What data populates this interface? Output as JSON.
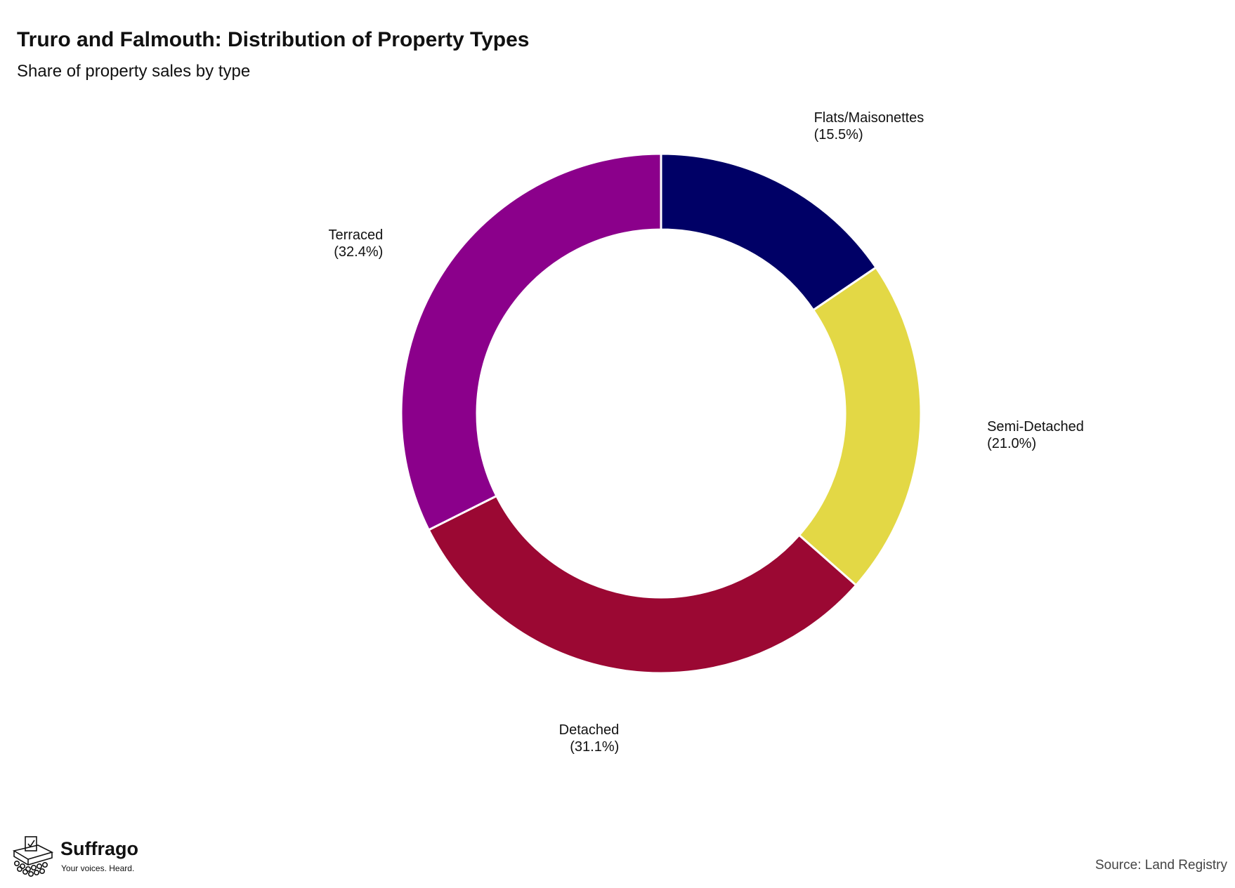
{
  "header": {
    "title": "Truro and Falmouth: Distribution of Property Types",
    "subtitle": "Share of property sales by type"
  },
  "chart_data": {
    "type": "pie",
    "variant": "donut",
    "title": "Truro and Falmouth: Distribution of Property Types",
    "subtitle": "Share of property sales by type",
    "unit": "%",
    "slices": [
      {
        "label": "Flats/Maisonettes",
        "value": 15.5,
        "display": "(15.5%)",
        "color": "#000066"
      },
      {
        "label": "Semi-Detached",
        "value": 21.0,
        "display": "(21.0%)",
        "color": "#e3d845"
      },
      {
        "label": "Detached",
        "value": 31.1,
        "display": "(31.1%)",
        "color": "#9b0833"
      },
      {
        "label": "Terraced",
        "value": 32.4,
        "display": "(32.4%)",
        "color": "#8b008b"
      }
    ],
    "start_angle": "12 o'clock",
    "direction": "clockwise",
    "legend": "none"
  },
  "footer": {
    "brand_name": "Suffrago",
    "brand_tagline": "Your voices. Heard.",
    "brand_icon": "ballot-box-icon",
    "source": "Source: Land Registry"
  }
}
